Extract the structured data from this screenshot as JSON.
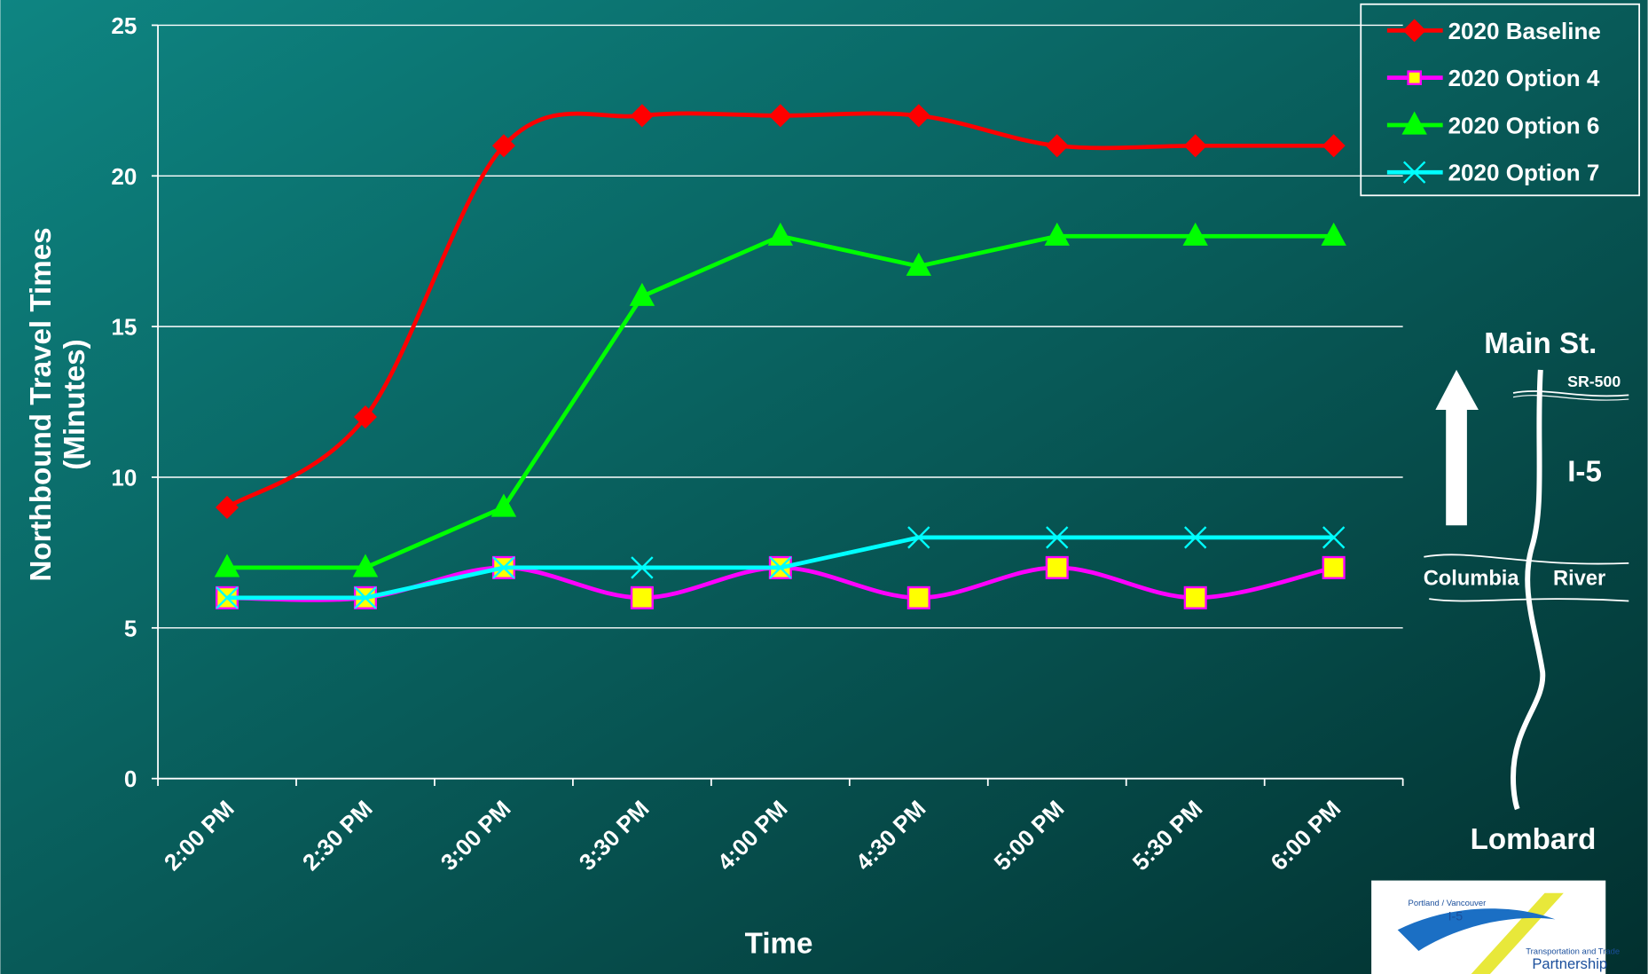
{
  "chart_data": {
    "type": "line",
    "xlabel": "Time",
    "ylabel": [
      "Northbound Travel Times",
      "(Minutes)"
    ],
    "categories": [
      "2:00 PM",
      "2:30 PM",
      "3:00 PM",
      "3:30 PM",
      "4:00 PM",
      "4:30 PM",
      "5:00 PM",
      "5:30 PM",
      "6:00 PM"
    ],
    "series": [
      {
        "name": "2020 Baseline",
        "color": "#ff0000",
        "marker": "diamond",
        "smooth": true,
        "values": [
          9,
          12,
          21,
          22,
          22,
          22,
          21,
          21,
          21
        ]
      },
      {
        "name": "2020 Option 4",
        "color": "#ff00ff",
        "marker": "square",
        "smooth": true,
        "values": [
          6,
          6,
          7,
          6,
          7,
          6,
          7,
          6,
          7
        ]
      },
      {
        "name": "2020 Option 6",
        "color": "#00ff00",
        "marker": "triangle",
        "smooth": false,
        "values": [
          7,
          7,
          9,
          16,
          18,
          17,
          18,
          18,
          18
        ]
      },
      {
        "name": "2020 Option 7",
        "color": "#00ffff",
        "marker": "x",
        "smooth": false,
        "values": [
          6,
          6,
          7,
          7,
          7,
          8,
          8,
          8,
          8
        ]
      }
    ],
    "ylim": [
      0,
      25
    ],
    "yticks": [
      0,
      5,
      10,
      15,
      20,
      25
    ],
    "grid": true,
    "legend": "top-right",
    "annotations": [
      "Main St.",
      "SR-500",
      "I-5",
      "Columbia",
      "River",
      "Lombard"
    ]
  },
  "logo": [
    "Portland / Vancouver",
    "I-5",
    "Transportation and Trade",
    "Partnership"
  ]
}
